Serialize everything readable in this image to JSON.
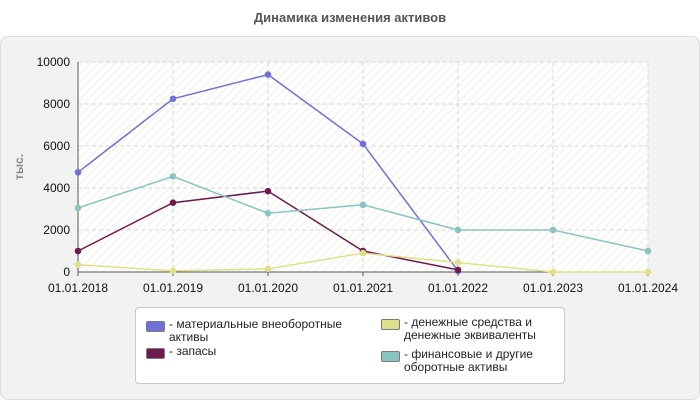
{
  "chart_data": {
    "type": "line",
    "title": "Динамика изменения активов",
    "ylabel": "тыс.",
    "xlabel": "",
    "categories": [
      "01.01.2018",
      "01.01.2019",
      "01.01.2020",
      "01.01.2021",
      "01.01.2022",
      "01.01.2023",
      "01.01.2024"
    ],
    "ylim": [
      0,
      10000
    ],
    "yticks": [
      0,
      2000,
      4000,
      6000,
      8000,
      10000
    ],
    "grid": true,
    "legend_position": "bottom",
    "series": [
      {
        "name": "материальные внеоборотные активы",
        "color": "#7070d8",
        "values": [
          4750,
          8250,
          9400,
          6100,
          50,
          null,
          null
        ]
      },
      {
        "name": "запасы",
        "color": "#6e1a4e",
        "values": [
          1000,
          3300,
          3850,
          1000,
          100,
          null,
          null
        ]
      },
      {
        "name": "денежные средства и денежные эквиваленты",
        "color": "#e0e08a",
        "values": [
          350,
          50,
          150,
          900,
          450,
          0,
          0
        ]
      },
      {
        "name": "финансовые и другие оборотные активы",
        "color": "#88c4c0",
        "values": [
          3050,
          4550,
          2800,
          3200,
          2000,
          2000,
          1000
        ]
      }
    ]
  }
}
